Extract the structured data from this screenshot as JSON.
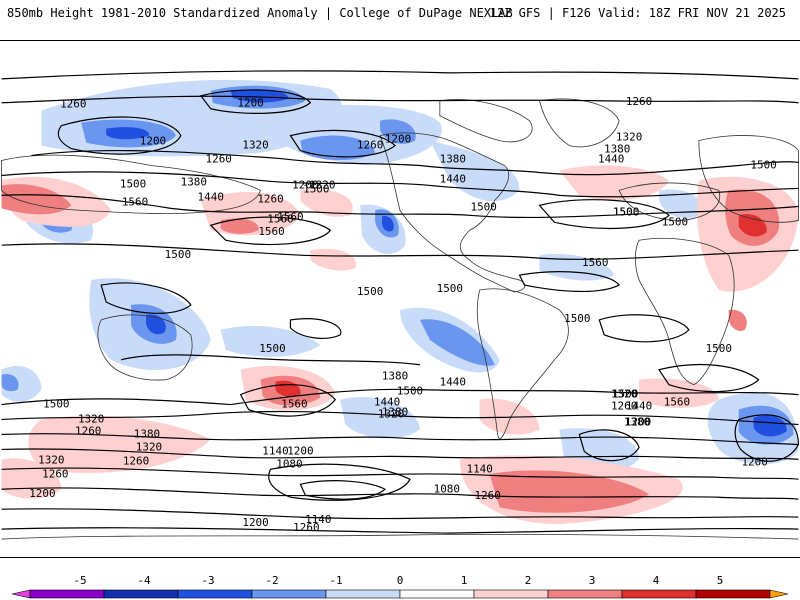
{
  "header": {
    "left_title": "850mb Height 1981-2010 Standardized Anomaly | College of DuPage NEXLAB",
    "right_title": "12Z GFS | F126 Valid: 18Z FRI NOV 21 2025"
  },
  "colorbar": {
    "ticks": [
      "-5",
      "-4",
      "-3",
      "-2",
      "-1",
      "0",
      "1",
      "2",
      "3",
      "4",
      "5"
    ],
    "colors": [
      "#e040e0",
      "#8a00c8",
      "#1030b0",
      "#2050e0",
      "#6a96f0",
      "#c8dcfa",
      "#ffffff",
      "#ffd0d0",
      "#f08080",
      "#e03030",
      "#b00000",
      "#ffa000"
    ]
  },
  "contour_labels": [
    "1260",
    "1200",
    "1200",
    "1260",
    "1320",
    "1200",
    "1260",
    "1200",
    "1260",
    "1320",
    "1380",
    "1440",
    "1500",
    "1260",
    "1320",
    "1380",
    "1440",
    "1500",
    "1560",
    "1380",
    "1440",
    "1500",
    "1560",
    "1560",
    "1560",
    "1500",
    "1500",
    "1500",
    "1560",
    "1500",
    "1500",
    "1500",
    "1500",
    "1500",
    "1500",
    "1500",
    "1500",
    "1560",
    "1440",
    "1380",
    "1320",
    "1500",
    "1440",
    "1380",
    "1320",
    "1260",
    "1200",
    "1560",
    "1500",
    "1440",
    "1380",
    "1320",
    "1260",
    "1320",
    "1260",
    "1200",
    "1140",
    "1200",
    "1080",
    "1140",
    "1080",
    "1260",
    "1200",
    "1260",
    "1320",
    "1380",
    "1200",
    "1140",
    "1260"
  ]
}
